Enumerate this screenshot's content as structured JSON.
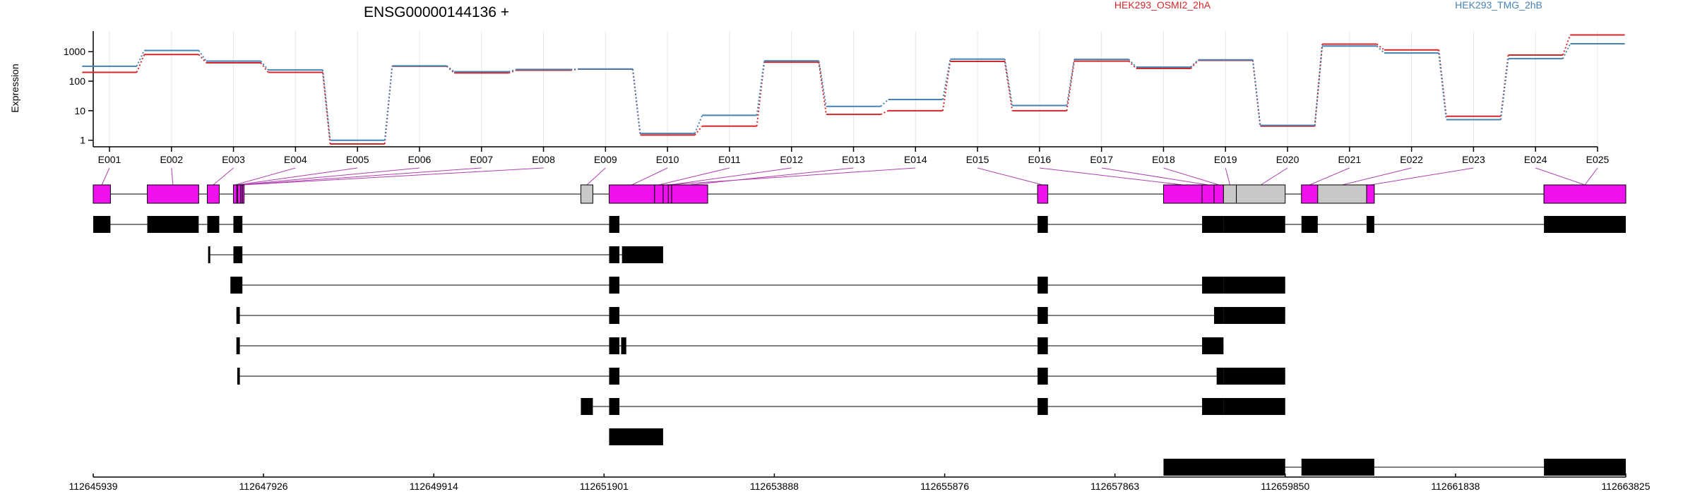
{
  "title": "ENSG00000144136 +",
  "ylabel": "Expression",
  "colors": {
    "osmi": "#d62728",
    "tmg": "#4682b4",
    "exon_magenta": "#ee11ee",
    "exon_gray": "#c8c8c8",
    "exon_black": "#000000",
    "connector": "#b040b0",
    "grid": "#e6e6e6"
  },
  "chart_data": {
    "type": "line",
    "y_scale": "log",
    "ylim": [
      0.6,
      5000
    ],
    "y_ticks": [
      1,
      10,
      100,
      1000
    ],
    "y_tick_labels": [
      "1",
      "10",
      "100",
      "1000"
    ],
    "categories": [
      "E001",
      "E002",
      "E003",
      "E004",
      "E005",
      "E006",
      "E007",
      "E008",
      "E009",
      "E010",
      "E011",
      "E012",
      "E013",
      "E014",
      "E015",
      "E016",
      "E017",
      "E018",
      "E019",
      "E020",
      "E021",
      "E022",
      "E023",
      "E024",
      "E025"
    ],
    "series": [
      {
        "name": "HEK293_OSMI2_2hA",
        "color": "#d62728",
        "values": [
          200,
          800,
          420,
          200,
          0.75,
          320,
          190,
          235,
          255,
          1.5,
          3,
          440,
          7.5,
          10,
          470,
          10,
          480,
          270,
          510,
          3,
          1800,
          1150,
          6.5,
          770,
          3700
        ]
      },
      {
        "name": "HEK293_TMG_2hB",
        "color": "#4682b4",
        "values": [
          320,
          1100,
          480,
          240,
          1,
          330,
          210,
          250,
          260,
          1.7,
          7,
          490,
          14,
          24,
          560,
          15,
          550,
          300,
          530,
          3.2,
          1550,
          900,
          5,
          580,
          1850
        ]
      }
    ],
    "genome_axis": {
      "range": [
        112645939,
        112663825
      ],
      "ticks": [
        112645939,
        112647926,
        112649914,
        112651901,
        112653888,
        112655876,
        112657863,
        112659850,
        112661838,
        112663825
      ],
      "tick_labels": [
        "112645939",
        "112647926",
        "112649914",
        "112651901",
        "112653888",
        "112655876",
        "112657863",
        "112659850",
        "112661838",
        "112663825"
      ]
    },
    "exon_bins": [
      {
        "id": "E001",
        "start": 112645939,
        "end": 112646140,
        "kind": "exon"
      },
      {
        "id": "E002",
        "start": 112646570,
        "end": 112647170,
        "kind": "exon"
      },
      {
        "id": "E003",
        "start": 112647270,
        "end": 112647410,
        "kind": "exon"
      },
      {
        "id": "E004",
        "start": 112647575,
        "end": 112647615,
        "kind": "exon"
      },
      {
        "id": "E005",
        "start": 112647615,
        "end": 112647625,
        "kind": "exon"
      },
      {
        "id": "E006",
        "start": 112647625,
        "end": 112647660,
        "kind": "exon"
      },
      {
        "id": "E007",
        "start": 112647660,
        "end": 112647680,
        "kind": "exon"
      },
      {
        "id": "E008",
        "start": 112647680,
        "end": 112647700,
        "kind": "exon"
      },
      {
        "id": "E009",
        "start": 112651630,
        "end": 112651770,
        "kind": "gray"
      },
      {
        "id": "E010",
        "start": 112651960,
        "end": 112652490,
        "kind": "exon"
      },
      {
        "id": "E011",
        "start": 112652490,
        "end": 112652590,
        "kind": "exon"
      },
      {
        "id": "E012",
        "start": 112652650,
        "end": 112652690,
        "kind": "exon"
      },
      {
        "id": "E013",
        "start": 112652690,
        "end": 112653110,
        "kind": "exon"
      },
      {
        "id": "E014",
        "start": 112652590,
        "end": 112652650,
        "kind": "exon"
      },
      {
        "id": "E015",
        "start": 112656960,
        "end": 112657080,
        "kind": "exon"
      },
      {
        "id": "E016",
        "start": 112658430,
        "end": 112658880,
        "kind": "exon"
      },
      {
        "id": "E017",
        "start": 112658880,
        "end": 112659020,
        "kind": "exon"
      },
      {
        "id": "E018",
        "start": 112659020,
        "end": 112659130,
        "kind": "exon"
      },
      {
        "id": "E019",
        "start": 112659130,
        "end": 112659280,
        "kind": "gray"
      },
      {
        "id": "E020",
        "start": 112659280,
        "end": 112659850,
        "kind": "gray"
      },
      {
        "id": "E021",
        "start": 112660040,
        "end": 112660230,
        "kind": "exon"
      },
      {
        "id": "E022",
        "start": 112660230,
        "end": 112660800,
        "kind": "gray"
      },
      {
        "id": "E023",
        "start": 112660800,
        "end": 112660890,
        "kind": "exon"
      },
      {
        "id": "E024",
        "start": 112662870,
        "end": 112663825,
        "kind": "exon"
      },
      {
        "id": "E025",
        "start": 112662870,
        "end": 112663825,
        "kind": "exon"
      }
    ],
    "transcripts": [
      [
        [
          112645939,
          112646140
        ],
        [
          112646570,
          112647170
        ],
        [
          112647270,
          112647410
        ],
        [
          112647575,
          112647680
        ],
        [
          112651960,
          112652080
        ],
        [
          112656960,
          112657080
        ],
        [
          112658880,
          112659130
        ],
        [
          112659130,
          112659850
        ],
        [
          112660040,
          112660230
        ],
        [
          112660800,
          112660890
        ],
        [
          112662870,
          112663825
        ]
      ],
      [
        [
          112647280,
          112647300
        ],
        [
          112647575,
          112647680
        ],
        [
          112651960,
          112652080
        ],
        [
          112652110,
          112652590
        ]
      ],
      [
        [
          112647540,
          112647680
        ],
        [
          112651960,
          112652080
        ],
        [
          112656960,
          112657080
        ],
        [
          112658880,
          112659130
        ],
        [
          112659130,
          112659850
        ]
      ],
      [
        [
          112647610,
          112647650
        ],
        [
          112651960,
          112652080
        ],
        [
          112656960,
          112657080
        ],
        [
          112659020,
          112659130
        ],
        [
          112659130,
          112659850
        ]
      ],
      [
        [
          112647610,
          112647650
        ],
        [
          112651960,
          112652080
        ],
        [
          112652100,
          112652160
        ],
        [
          112656960,
          112657080
        ],
        [
          112658880,
          112659130
        ]
      ],
      [
        [
          112647620,
          112647650
        ],
        [
          112651960,
          112652080
        ],
        [
          112656960,
          112657080
        ],
        [
          112659050,
          112659130
        ],
        [
          112659130,
          112659850
        ]
      ],
      [
        [
          112651630,
          112651770
        ],
        [
          112651960,
          112652080
        ],
        [
          112656960,
          112657080
        ],
        [
          112658880,
          112659130
        ],
        [
          112659130,
          112659850
        ]
      ],
      [
        [
          112651960,
          112652490
        ],
        [
          112652110,
          112652590
        ]
      ],
      [
        [
          112658430,
          112659850
        ],
        [
          112660040,
          112660890
        ],
        [
          112662870,
          112663825
        ]
      ]
    ]
  }
}
